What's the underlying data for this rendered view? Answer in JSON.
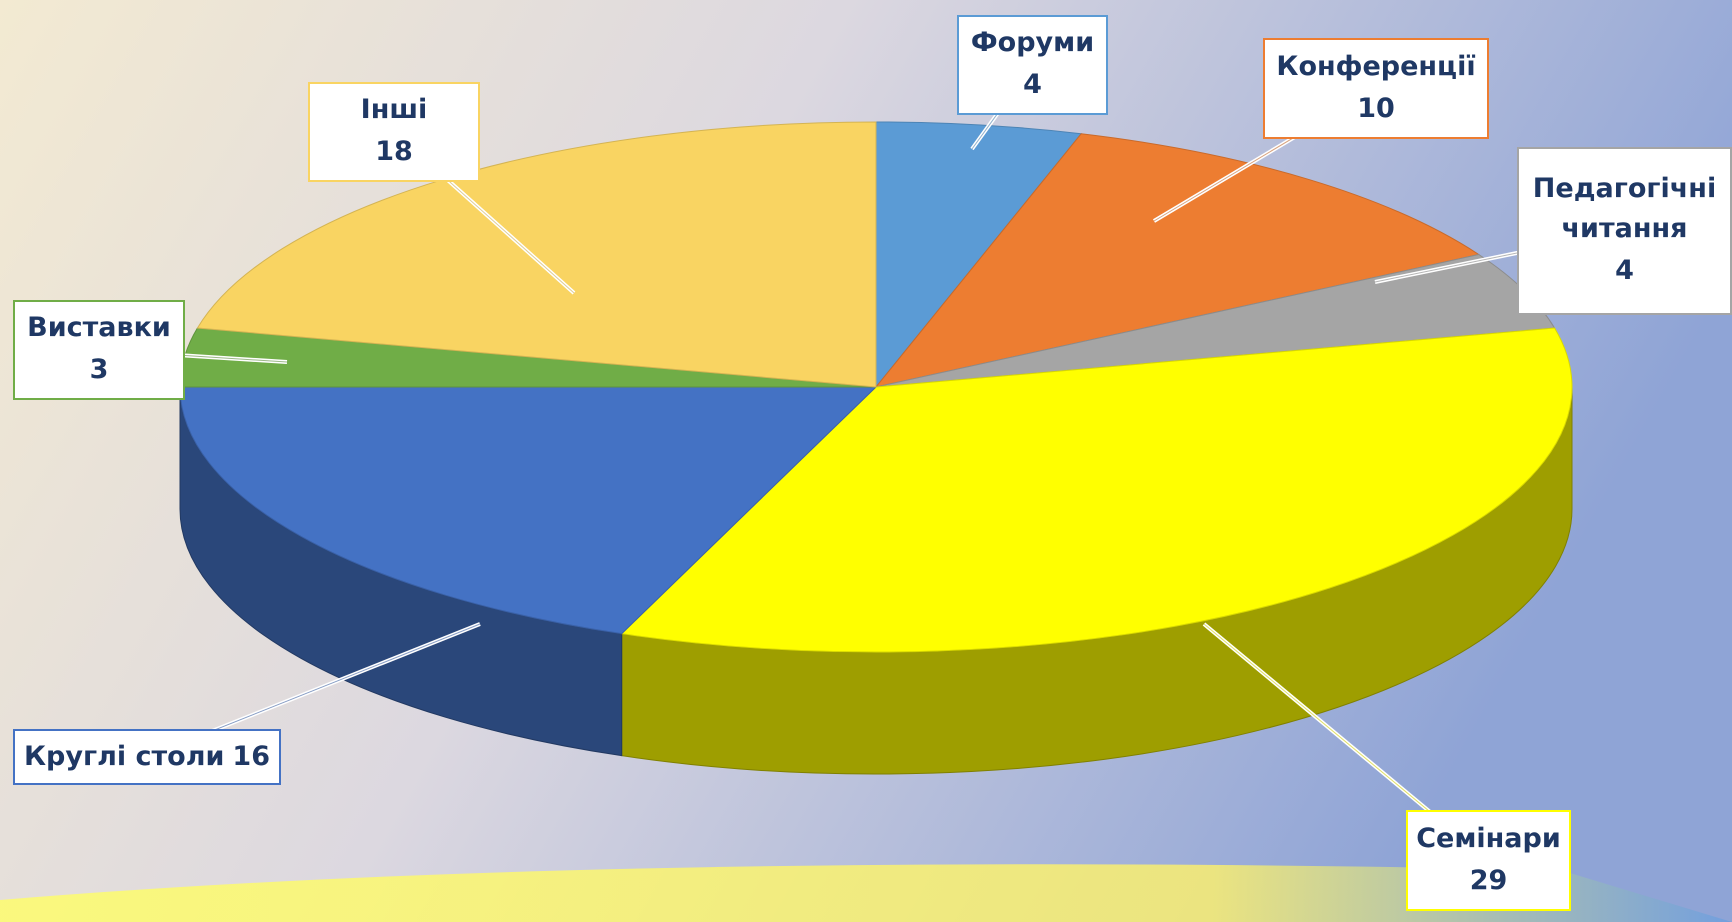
{
  "chart_data": {
    "type": "pie3d",
    "categories": [
      "Форуми",
      "Конференції",
      "Педагогічні читання",
      "Семінари",
      "Круглі столи",
      "Виставки",
      "Інші"
    ],
    "values": [
      4,
      10,
      4,
      29,
      16,
      3,
      18
    ],
    "colors": [
      "#5b9bd5",
      "#ed7d31",
      "#a5a5a5",
      "#ffff00",
      "#4472c4",
      "#70ad47",
      "#f9d462"
    ]
  }
}
